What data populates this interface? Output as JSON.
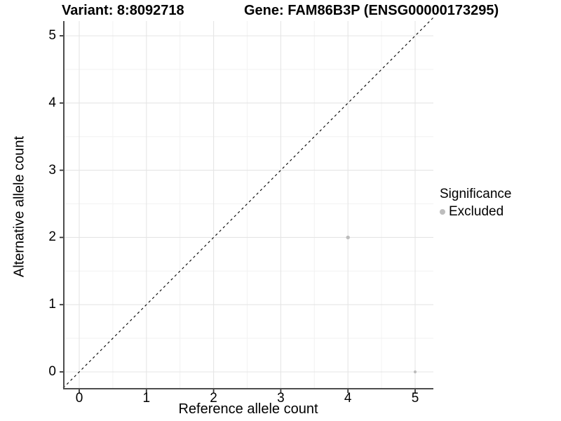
{
  "titles": {
    "variant": "Variant: 8:8092718",
    "gene": "Gene: FAM86B3P (ENSG00000173295)"
  },
  "chart_data": {
    "type": "scatter",
    "xlabel": "Reference allele count",
    "ylabel": "Alternative allele count",
    "x_ticks": [
      0,
      1,
      2,
      3,
      4,
      5
    ],
    "y_ticks": [
      0,
      1,
      2,
      3,
      4,
      5
    ],
    "minor_ticks": [
      0.5,
      1.5,
      2.5,
      3.5,
      4.5
    ],
    "xlim": [
      -0.24,
      5.27
    ],
    "ylim": [
      -0.24,
      5.27
    ],
    "grid": true,
    "points": [
      {
        "x": 4,
        "y": 2,
        "significance": "Excluded",
        "radius": 2.7
      },
      {
        "x": 5,
        "y": 0,
        "significance": "Excluded",
        "radius": 2.1
      }
    ],
    "identity_line": {
      "style": "dashed",
      "from": [
        -0.24,
        -0.24
      ],
      "to": [
        5.27,
        5.27
      ]
    },
    "legend": {
      "position": "right",
      "title": "Significance",
      "items": [
        {
          "label": "Excluded",
          "color": "#bdbdbd"
        }
      ]
    }
  },
  "colors": {
    "point": "#bdbdbd",
    "grid_major": "#e5e5e5",
    "grid_minor": "#f2f2f2",
    "axis_line": "#4d4d4d",
    "tick_mark": "#333333",
    "identity_line": "#000000",
    "text": "#000000",
    "background": "#ffffff"
  }
}
